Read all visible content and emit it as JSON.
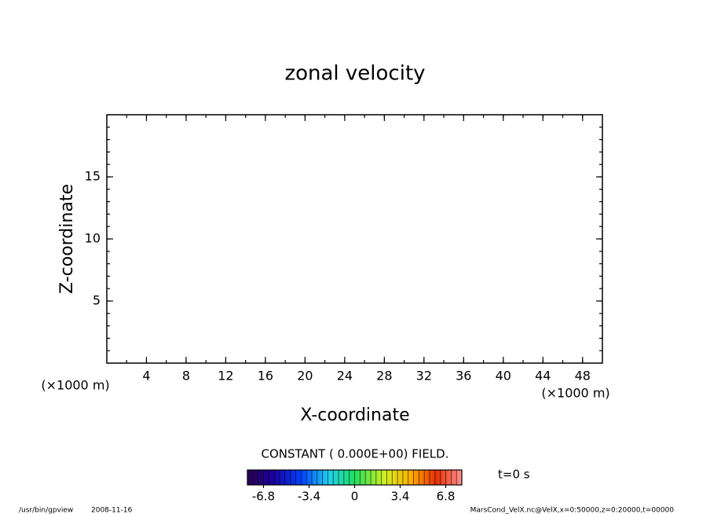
{
  "chart_data": {
    "type": "contour",
    "title": "zonal velocity",
    "x_label": "X-coordinate",
    "y_label": "Z-coordinate",
    "x_unit_label": "(×1000 m)",
    "y_unit_label": "(×1000 m)",
    "xlim": [
      0,
      50
    ],
    "ylim": [
      0,
      20
    ],
    "xticks": [
      4,
      8,
      12,
      16,
      20,
      24,
      28,
      32,
      36,
      40,
      44,
      48
    ],
    "yticks": [
      5,
      10,
      15
    ],
    "field_note": "CONSTANT ( 0.000E+00) FIELD.",
    "time_label": "t=0 s",
    "colorbar": {
      "lim": [
        -8,
        8
      ],
      "ticks": [
        -6.8,
        -3.4,
        0,
        3.4,
        6.8
      ]
    }
  },
  "footer": {
    "program": "/usr/bin/gpview",
    "date": "2008-11-16",
    "source": "MarsCond_VelX.nc@VelX,x=0:50000,z=0:20000,t=00000"
  }
}
